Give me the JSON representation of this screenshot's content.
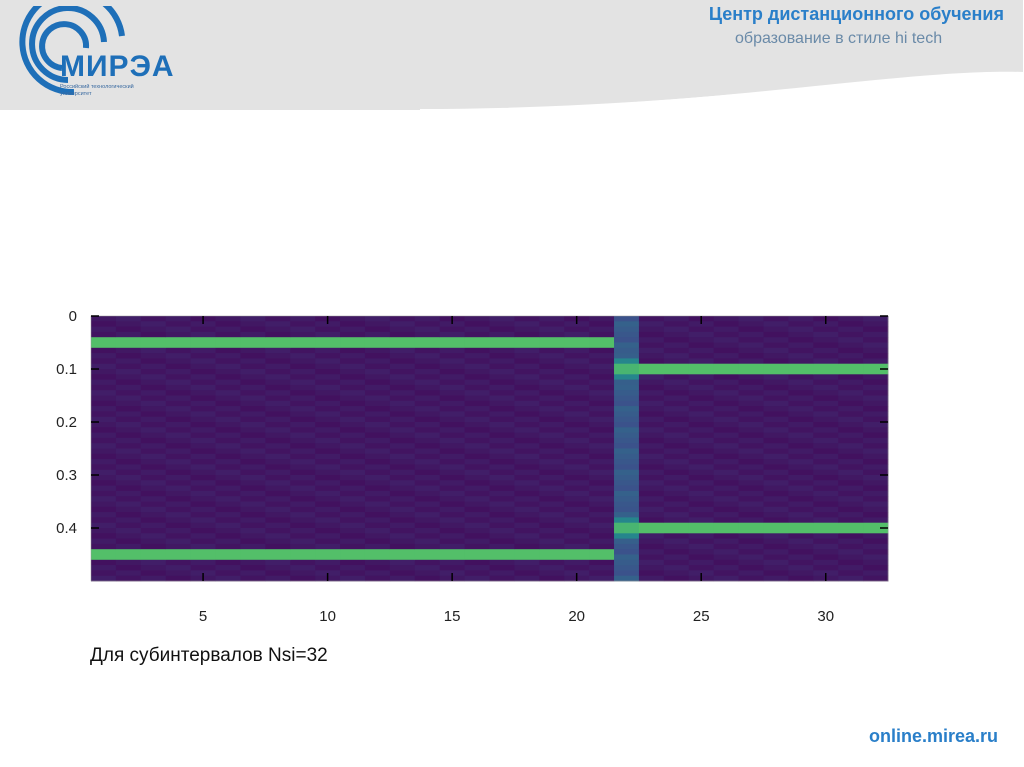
{
  "header": {
    "title": "Центр дистанционного обучения",
    "subtitle": "образование в стиле hi tech",
    "logo_text": "МИРЭА",
    "logo_subtext": "Российский технологический университет"
  },
  "caption": "Для субинтервалов Nsi=32",
  "footer": {
    "url": "online.mirea.ru"
  },
  "colors": {
    "accent": "#2a7fc9",
    "bg_purple": "#440f68",
    "mid_purple": "#47287c",
    "band_yellow": "#f2e41c",
    "band_green": "#3fbf6a",
    "band_teal": "#1f94a0"
  },
  "chart_data": {
    "type": "heatmap",
    "x_ticks": [
      5,
      10,
      15,
      20,
      25,
      30
    ],
    "y_ticks": [
      0,
      0.1,
      0.2,
      0.3,
      0.4
    ],
    "x_range": [
      0.5,
      32.5
    ],
    "y_range": [
      0,
      0.5
    ],
    "y_direction": "top-down",
    "colormap": "viridis",
    "segments": [
      {
        "columns": [
          1,
          21
        ],
        "peaks": [
          0.05,
          0.45
        ]
      },
      {
        "columns": [
          22,
          22
        ],
        "peaks": [
          0.1,
          0.4
        ],
        "note_style": "transition"
      },
      {
        "columns": [
          23,
          32
        ],
        "peaks": [
          0.1,
          0.4
        ]
      }
    ],
    "grid": false
  }
}
